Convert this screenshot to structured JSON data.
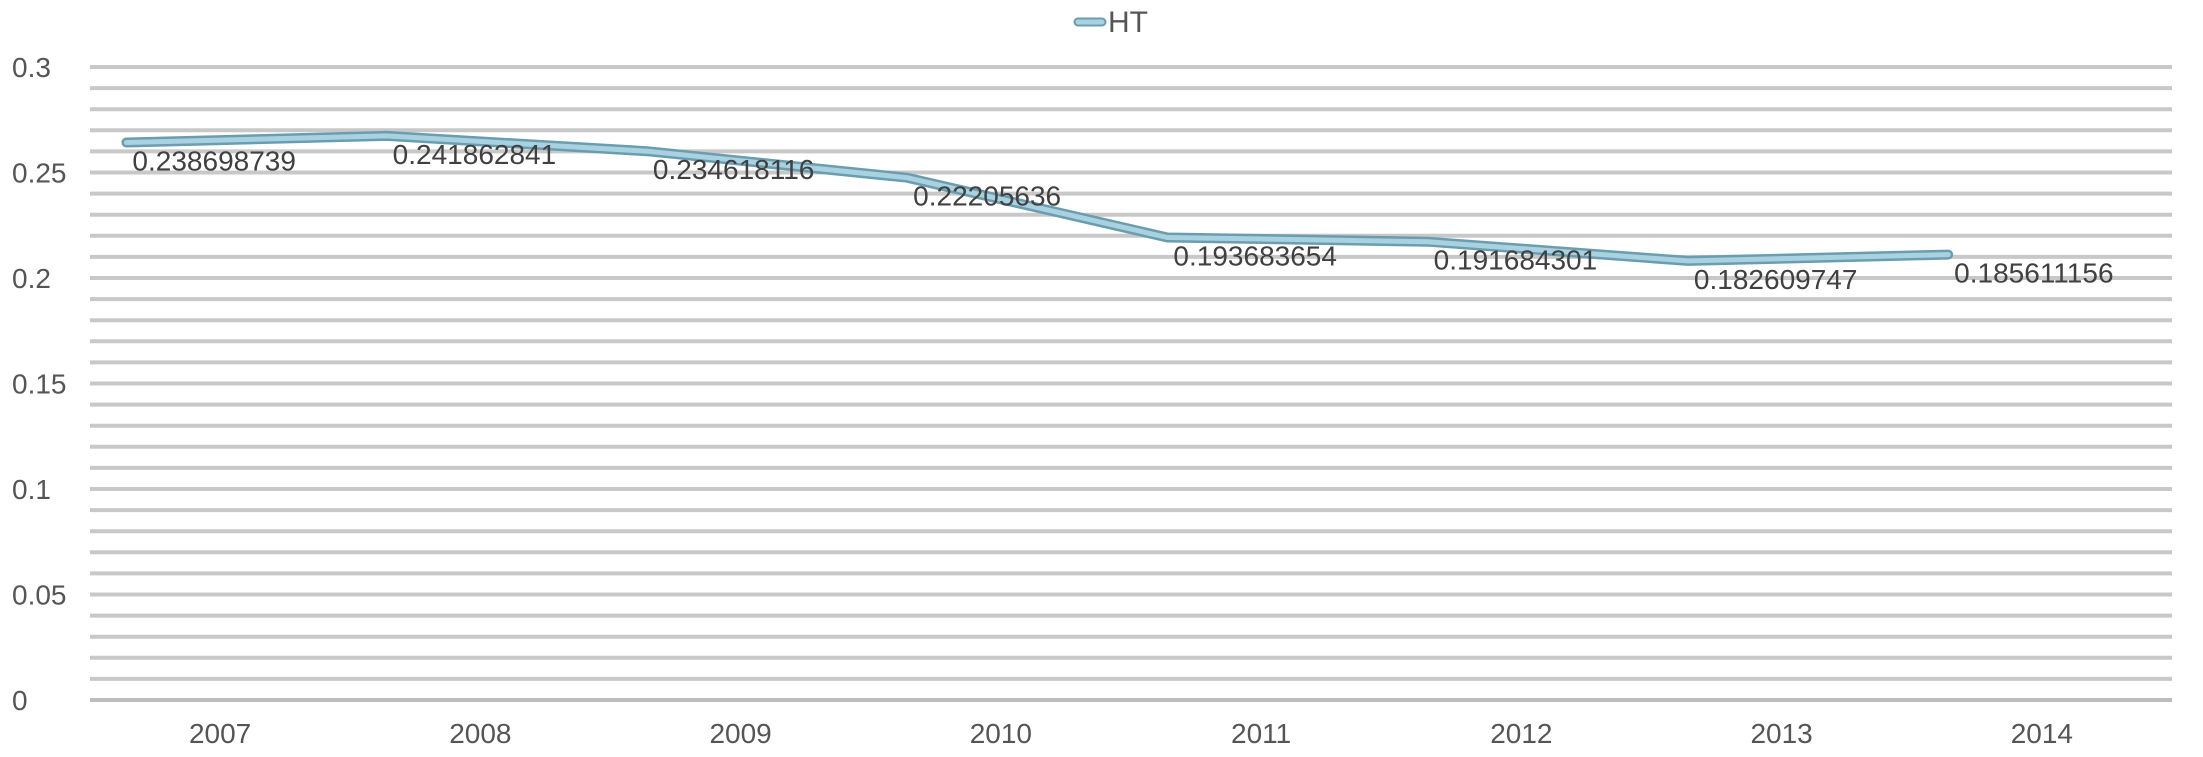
{
  "chart_data": {
    "type": "line",
    "categories": [
      "2007",
      "2008",
      "2009",
      "2010",
      "2011",
      "2012",
      "2013",
      "2014"
    ],
    "series": [
      {
        "name": "HT",
        "values": [
          0.238698739,
          0.241862841,
          0.234618116,
          0.22205636,
          0.193683654,
          0.191684301,
          0.182609747,
          0.185611156
        ],
        "labels": [
          "0.238698739",
          "0.241862841",
          "0.234618116",
          "0.22205636",
          "0.193683654",
          "0.191684301",
          "0.182609747",
          "0.185611156"
        ]
      }
    ],
    "yticks": [
      "0",
      "0.05",
      "0.1",
      "0.15",
      "0.2",
      "0.25",
      "0.3"
    ],
    "ylim": [
      0,
      0.3
    ],
    "title": "",
    "xlabel": "",
    "ylabel": "",
    "grid": true,
    "legend": "top-center",
    "colors": {
      "line": "#8fbfd0",
      "line_edge": "#6a9db0",
      "grid": "#c8c8c8",
      "text": "#555555"
    }
  }
}
